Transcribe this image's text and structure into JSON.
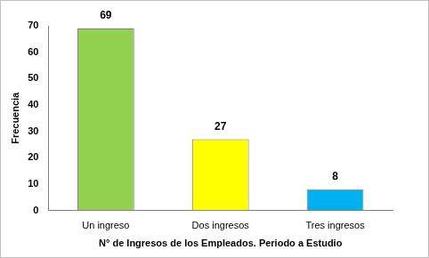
{
  "chart_data": {
    "type": "bar",
    "categories": [
      "Un ingreso",
      "Dos ingresos",
      "Tres ingresos"
    ],
    "values": [
      69,
      27,
      8
    ],
    "colors": [
      "#92d050",
      "#ffff00",
      "#00b0f0"
    ],
    "x_label": "N° de Ingresos de los Empleados. Periodo a Estudio",
    "y_label": "Frecuencia",
    "ylim": [
      0,
      70
    ],
    "yticks": [
      0,
      10,
      20,
      30,
      40,
      50,
      60,
      70
    ],
    "grid": false,
    "data_labels": true
  }
}
